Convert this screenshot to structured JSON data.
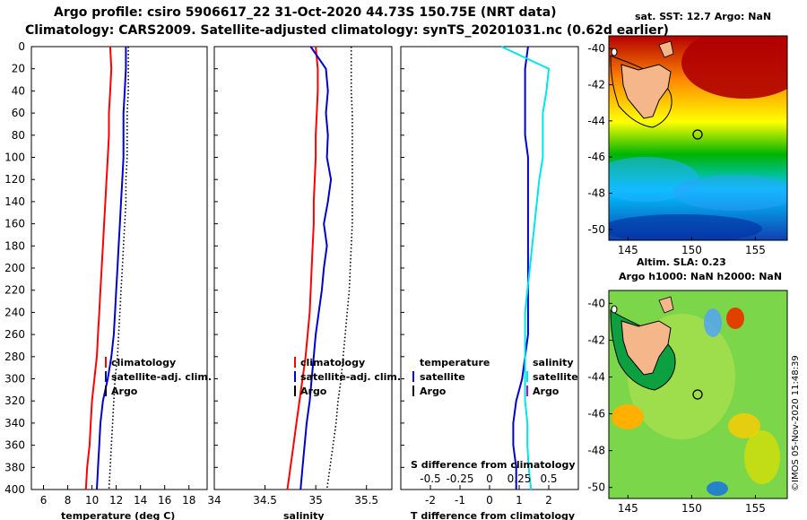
{
  "header": {
    "line1": "Argo profile: csiro 5906617_22 31-Oct-2020 44.73S 150.75E (NRT data)",
    "line2": "Climatology: CARS2009. Satellite-adjusted climatology: synTS_20201031.nc (0.62d earlier)"
  },
  "depth_ticks": [
    "0",
    "20",
    "40",
    "60",
    "80",
    "100",
    "120",
    "140",
    "160",
    "180",
    "200",
    "220",
    "240",
    "260",
    "280",
    "300",
    "320",
    "340",
    "360",
    "380",
    "400"
  ],
  "colors": {
    "climatology": "#ff0000",
    "satellite": "#0000cc",
    "argo": "#000000",
    "cyan": "#00e5e5",
    "magenta": "#cc00cc"
  },
  "chart_data": [
    {
      "type": "line",
      "title": "temperature",
      "xlabel": "temperature (deg C)",
      "xlim": [
        5,
        19.5
      ],
      "xticks": [
        "6",
        "8",
        "10",
        "12",
        "14",
        "16",
        "18"
      ],
      "ylim": [
        0,
        400
      ],
      "y": [
        0,
        20,
        40,
        60,
        80,
        100,
        120,
        140,
        160,
        180,
        200,
        220,
        240,
        260,
        280,
        300,
        320,
        340,
        360,
        380,
        400
      ],
      "series": [
        {
          "name": "climatology",
          "values": [
            11.5,
            11.6,
            11.5,
            11.4,
            11.4,
            11.3,
            11.2,
            11.1,
            11.0,
            10.9,
            10.8,
            10.7,
            10.6,
            10.5,
            10.4,
            10.2,
            10.0,
            9.9,
            9.8,
            9.6,
            9.5
          ]
        },
        {
          "name": "satellite-adj. clim.",
          "values": [
            12.8,
            12.8,
            12.7,
            12.6,
            12.6,
            12.6,
            12.5,
            12.4,
            12.3,
            12.2,
            12.1,
            12.0,
            11.9,
            11.8,
            11.6,
            11.3,
            10.9,
            10.7,
            10.6,
            10.5,
            10.4
          ]
        },
        {
          "name": "Argo",
          "values": [
            13.0,
            13.0,
            13.0,
            12.9,
            12.9,
            12.9,
            12.8,
            12.8,
            12.7,
            12.6,
            12.5,
            12.4,
            12.3,
            12.2,
            12.1,
            11.9,
            11.8,
            11.7,
            11.6,
            11.5,
            11.4
          ]
        }
      ],
      "legend": [
        "climatology",
        "satellite-adj. clim.",
        "Argo"
      ]
    },
    {
      "type": "line",
      "title": "salinity",
      "xlabel": "salinity",
      "xlim": [
        34,
        35.75
      ],
      "xticks": [
        "34",
        "34.5",
        "35",
        "35.5"
      ],
      "ylim": [
        0,
        400
      ],
      "y": [
        0,
        20,
        40,
        60,
        80,
        100,
        120,
        140,
        160,
        180,
        200,
        220,
        240,
        260,
        280,
        300,
        320,
        340,
        360,
        380,
        400
      ],
      "series": [
        {
          "name": "climatology",
          "values": [
            35.0,
            35.02,
            35.02,
            35.01,
            35.0,
            35.0,
            34.99,
            34.98,
            34.98,
            34.97,
            34.96,
            34.95,
            34.94,
            34.92,
            34.9,
            34.87,
            34.84,
            34.81,
            34.78,
            34.75,
            34.72
          ]
        },
        {
          "name": "satellite-adj. clim.",
          "values": [
            34.95,
            35.1,
            35.12,
            35.1,
            35.12,
            35.11,
            35.15,
            35.12,
            35.08,
            35.11,
            35.08,
            35.06,
            35.03,
            35.0,
            34.98,
            34.96,
            34.94,
            34.91,
            34.89,
            34.87,
            34.85
          ]
        },
        {
          "name": "Argo",
          "values": [
            35.35,
            35.35,
            35.35,
            35.36,
            35.36,
            35.36,
            35.36,
            35.36,
            35.36,
            35.35,
            35.34,
            35.33,
            35.31,
            35.29,
            35.27,
            35.25,
            35.22,
            35.2,
            35.17,
            35.14,
            35.11
          ]
        }
      ],
      "legend": [
        "climatology",
        "satellite-adj. clim.",
        "Argo"
      ]
    },
    {
      "type": "line",
      "title": "difference from climatology",
      "xlabel": "T difference from climatology",
      "xlabel_top": "S difference from climatology",
      "xlim": [
        -3,
        3
      ],
      "xticks": [
        "-2",
        "-1",
        "0",
        "1",
        "2"
      ],
      "xticks_top": [
        "-0.5",
        "-0.25",
        "0",
        "0.25",
        "0.5"
      ],
      "ylim": [
        0,
        400
      ],
      "y": [
        0,
        20,
        40,
        60,
        80,
        100,
        120,
        140,
        160,
        180,
        200,
        220,
        240,
        260,
        280,
        300,
        320,
        340,
        360,
        380,
        400
      ],
      "series": [
        {
          "name": "temperature satellite",
          "values": [
            1.3,
            1.2,
            1.2,
            1.2,
            1.2,
            1.3,
            1.3,
            1.3,
            1.3,
            1.3,
            1.3,
            1.3,
            1.3,
            1.3,
            1.2,
            1.1,
            0.9,
            0.8,
            0.8,
            0.9,
            0.9
          ]
        },
        {
          "name": "salinity satellite",
          "values": [
            0.1,
            0.5,
            0.48,
            0.45,
            0.45,
            0.45,
            0.42,
            0.4,
            0.38,
            0.36,
            0.34,
            0.32,
            0.3,
            0.3,
            0.3,
            0.3,
            0.3,
            0.32,
            0.32,
            0.33,
            0.35
          ]
        }
      ],
      "legend_left": {
        "header": "temperature",
        "items": [
          "satellite",
          "Argo"
        ]
      },
      "legend_right": {
        "header": "salinity",
        "items": [
          "satellite",
          "Argo"
        ]
      }
    }
  ],
  "maps": [
    {
      "title": "sat. SST: 12.7 Argo: NaN",
      "xticks": [
        "145",
        "150",
        "155"
      ],
      "yticks": [
        "-40",
        "-42",
        "-44",
        "-46",
        "-48",
        "-50"
      ]
    },
    {
      "title_line1": "Altim. SLA: 0.23",
      "title_line2": "Argo h1000: NaN h2000: NaN",
      "xticks": [
        "145",
        "150",
        "155"
      ],
      "yticks": [
        "-40",
        "-42",
        "-44",
        "-46",
        "-48",
        "-50"
      ]
    }
  ],
  "credit": "©IMOS 05-Nov-2020 11:48:39"
}
